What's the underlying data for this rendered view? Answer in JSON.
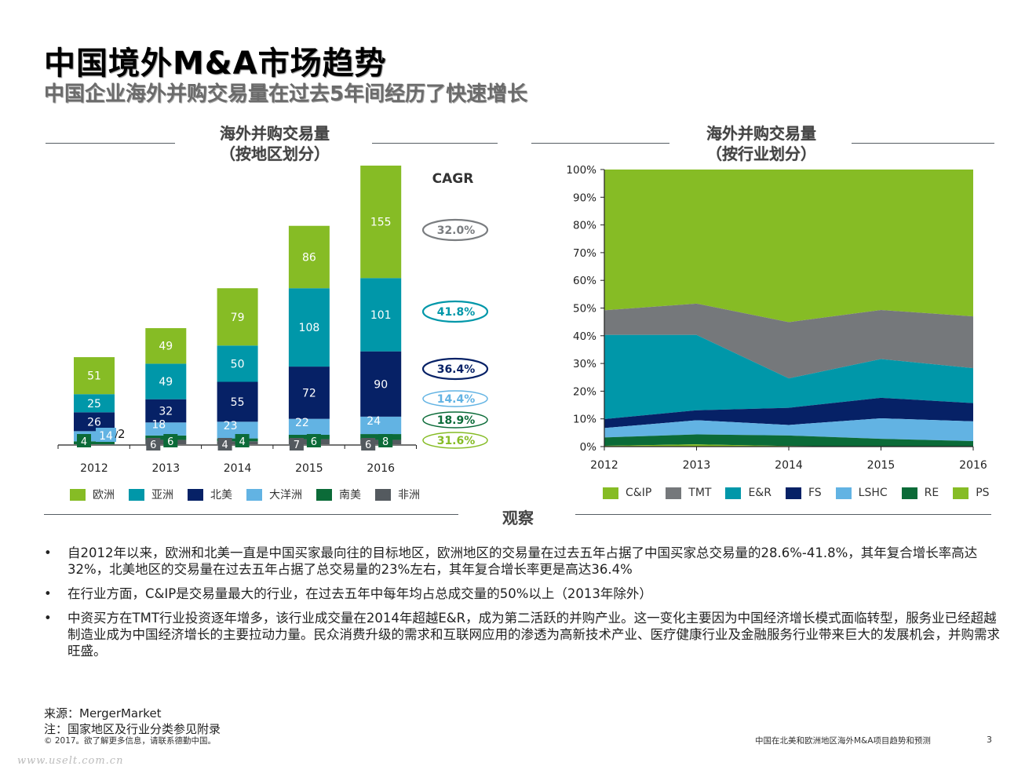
{
  "header": {
    "title": "中国境外M&A市场趋势",
    "subtitle": "中国企业海外并购交易量在过去5年间经历了快速增长"
  },
  "chart_data": [
    {
      "type": "bar",
      "stacked": true,
      "title_line1": "海外并购交易量",
      "title_line2": "（按地区划分）",
      "categories": [
        "2012",
        "2013",
        "2014",
        "2015",
        "2016"
      ],
      "series": [
        {
          "name": "非洲",
          "color": "#545a5f",
          "values": [
            0,
            6,
            4,
            7,
            6
          ],
          "labels": [
            "",
            "6",
            "4",
            "7",
            "6"
          ]
        },
        {
          "name": "南美",
          "color": "#0b6b38",
          "values": [
            4,
            6,
            4,
            6,
            8
          ],
          "labels": [
            "4",
            "6",
            "4",
            "6",
            "8"
          ]
        },
        {
          "name": "大洋洲",
          "color": "#62b3e3",
          "values": [
            14,
            18,
            23,
            22,
            24
          ],
          "labels": [
            "14",
            "18",
            "23",
            "22",
            "24"
          ]
        },
        {
          "name": "北美",
          "color": "#062166",
          "values": [
            26,
            32,
            55,
            72,
            90
          ],
          "labels": [
            "26",
            "32",
            "55",
            "72",
            "90"
          ]
        },
        {
          "name": "亚洲",
          "color": "#0097a9",
          "values": [
            25,
            49,
            50,
            108,
            101
          ],
          "labels": [
            "25",
            "49",
            "50",
            "108",
            "101"
          ]
        },
        {
          "name": "欧洲",
          "color": "#86bc25",
          "values": [
            51,
            49,
            79,
            86,
            155
          ],
          "labels": [
            "51",
            "49",
            "79",
            "86",
            "155"
          ]
        }
      ],
      "extra_annotation": {
        "category": "2012",
        "text": "2"
      },
      "legend_order": [
        "欧洲",
        "亚洲",
        "北美",
        "大洋洲",
        "南美",
        "非洲"
      ],
      "legend_placement": "bottom",
      "cagr_title": "CAGR",
      "cagr": [
        {
          "value": "32.0%",
          "color": "#7a7d80"
        },
        {
          "value": "41.8%",
          "color": "#0097a9"
        },
        {
          "value": "36.4%",
          "color": "#062166"
        },
        {
          "value": "14.4%",
          "color": "#62b3e3"
        },
        {
          "value": "18.9%",
          "color": "#0b6b38"
        },
        {
          "value": "31.6%",
          "color": "#86bc25"
        }
      ],
      "ylim": [
        0,
        384
      ],
      "grid": false
    },
    {
      "type": "area",
      "stacked": true,
      "percent": true,
      "title_line1": "海外并购交易量",
      "title_line2": "（按行业划分）",
      "x": [
        "2012",
        "2013",
        "2014",
        "2015",
        "2016"
      ],
      "yticks": [
        "0%",
        "10%",
        "20%",
        "30%",
        "40%",
        "50%",
        "60%",
        "70%",
        "80%",
        "90%",
        "100%"
      ],
      "ylim": [
        0,
        100
      ],
      "series": [
        {
          "name": "PS",
          "color": "#86bc25",
          "values": [
            0.3,
            0.8,
            0.2,
            0.0,
            0.0
          ]
        },
        {
          "name": "RE",
          "color": "#0b6b38",
          "values": [
            3.0,
            3.6,
            3.8,
            2.8,
            2.0
          ]
        },
        {
          "name": "LSHC",
          "color": "#62b3e3",
          "values": [
            3.4,
            5.1,
            3.8,
            7.4,
            7.1
          ]
        },
        {
          "name": "FS",
          "color": "#062166",
          "values": [
            3.2,
            3.6,
            6.2,
            7.4,
            6.6
          ]
        },
        {
          "name": "E&R",
          "color": "#0097a9",
          "values": [
            30.4,
            27.2,
            10.6,
            14.0,
            12.6
          ]
        },
        {
          "name": "TMT",
          "color": "#75787b",
          "values": [
            8.9,
            11.3,
            20.3,
            17.7,
            18.7
          ]
        },
        {
          "name": "C&IP",
          "color": "#86bc25",
          "values": [
            50.8,
            48.4,
            55.1,
            50.7,
            53.0
          ]
        }
      ],
      "legend_order": [
        "C&IP",
        "TMT",
        "E&R",
        "FS",
        "LSHC",
        "RE",
        "PS"
      ],
      "legend_placement": "bottom",
      "grid": false
    }
  ],
  "observations": {
    "label": "观察",
    "bullets": [
      "自2012年以来，欧洲和北美一直是中国买家最向往的目标地区，欧洲地区的交易量在过去五年占据了中国买家总交易量的28.6%-41.8%，其年复合增长率高达32%，北美地区的交易量在过去五年占据了总交易量的23%左右，其年复合增长率更是高达36.4%",
      "在行业方面，C&IP是交易量最大的行业，在过去五年中每年均占总成交量的50%以上（2013年除外）",
      "中资买方在TMT行业投资逐年增多，该行业成交量在2014年超越E&R，成为第二活跃的并购产业。这一变化主要因为中国经济增长模式面临转型，服务业已经超越制造业成为中国经济增长的主要拉动力量。民众消费升级的需求和互联网应用的渗透为高新技术产业、医疗健康行业及金融服务行业带来巨大的发展机会，并购需求旺盛。"
    ],
    "bullet_char": "•"
  },
  "footer": {
    "source": "来源：MergerMarket",
    "note": "注：国家地区及行业分类参见附录",
    "copyright": "© 2017。欲了解更多信息，请联系德勤中国。",
    "doc_title": "中国在北美和欧洲地区海外M&A项目趋势和预测",
    "page_number": "3",
    "watermark": "www.uselt.com.cn"
  }
}
